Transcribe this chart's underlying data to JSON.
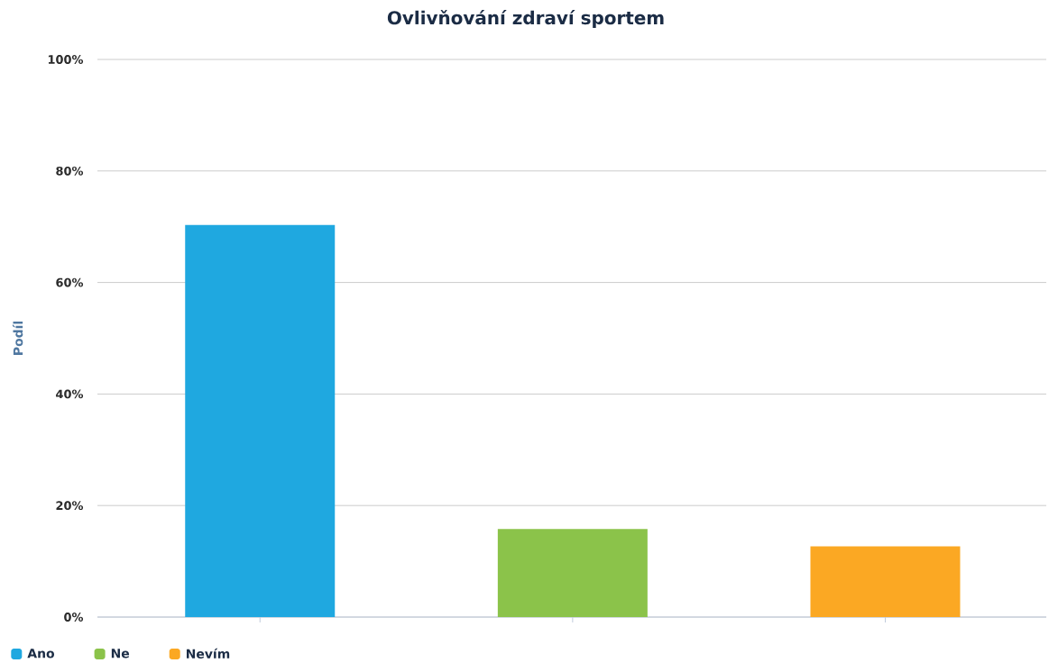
{
  "chart_data": {
    "type": "bar",
    "title": "Ovlivňování zdraví sportem",
    "ylabel": "Podíl",
    "categories": [
      null,
      null,
      null
    ],
    "series": [
      {
        "name": "Ano",
        "color": "#1fa8e0",
        "values": [
          70.3,
          null,
          null
        ]
      },
      {
        "name": "Ne",
        "color": "#8bc34a",
        "values": [
          null,
          15.8,
          null
        ]
      },
      {
        "name": "Nevím",
        "color": "#fba823",
        "values": [
          null,
          null,
          12.7
        ]
      }
    ],
    "ylim": [
      0,
      100
    ],
    "yticks": [
      {
        "value": 0,
        "label": "0%"
      },
      {
        "value": 20,
        "label": "20%"
      },
      {
        "value": 40,
        "label": "40%"
      },
      {
        "value": 60,
        "label": "60%"
      },
      {
        "value": 80,
        "label": "80%"
      },
      {
        "value": 100,
        "label": "100%"
      }
    ],
    "grid": "y",
    "legend": "bottom left",
    "tick_labels": "y"
  }
}
